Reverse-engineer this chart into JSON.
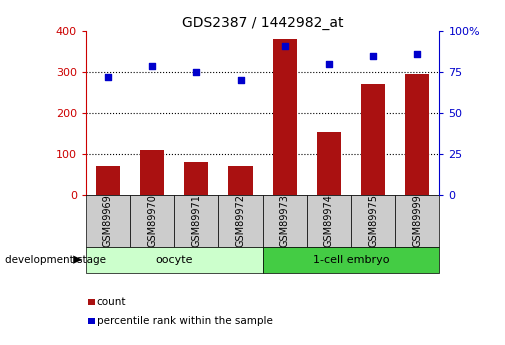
{
  "title": "GDS2387 / 1442982_at",
  "samples": [
    "GSM89969",
    "GSM89970",
    "GSM89971",
    "GSM89972",
    "GSM89973",
    "GSM89974",
    "GSM89975",
    "GSM89999"
  ],
  "counts": [
    70,
    110,
    82,
    70,
    380,
    155,
    272,
    295
  ],
  "percentiles": [
    72,
    79,
    75,
    70,
    91,
    80,
    85,
    86
  ],
  "groups": [
    {
      "label": "oocyte",
      "start": 0,
      "end": 4,
      "color": "#ccffcc"
    },
    {
      "label": "1-cell embryo",
      "start": 4,
      "end": 8,
      "color": "#44cc44"
    }
  ],
  "bar_color": "#aa1111",
  "dot_color": "#0000cc",
  "left_axis_color": "#cc0000",
  "right_axis_color": "#0000cc",
  "ylim_left": [
    0,
    400
  ],
  "ylim_right": [
    0,
    100
  ],
  "yticks_left": [
    0,
    100,
    200,
    300,
    400
  ],
  "yticks_right": [
    0,
    25,
    50,
    75,
    100
  ],
  "ytick_labels_left": [
    "0",
    "100",
    "200",
    "300",
    "400"
  ],
  "ytick_labels_right": [
    "0",
    "25",
    "50",
    "75",
    "100%"
  ],
  "grid_color": "#000000",
  "background_color": "#ffffff",
  "tick_label_area_color": "#cccccc",
  "dev_stage_label": "development stage",
  "legend_count_label": "count",
  "legend_pct_label": "percentile rank within the sample"
}
